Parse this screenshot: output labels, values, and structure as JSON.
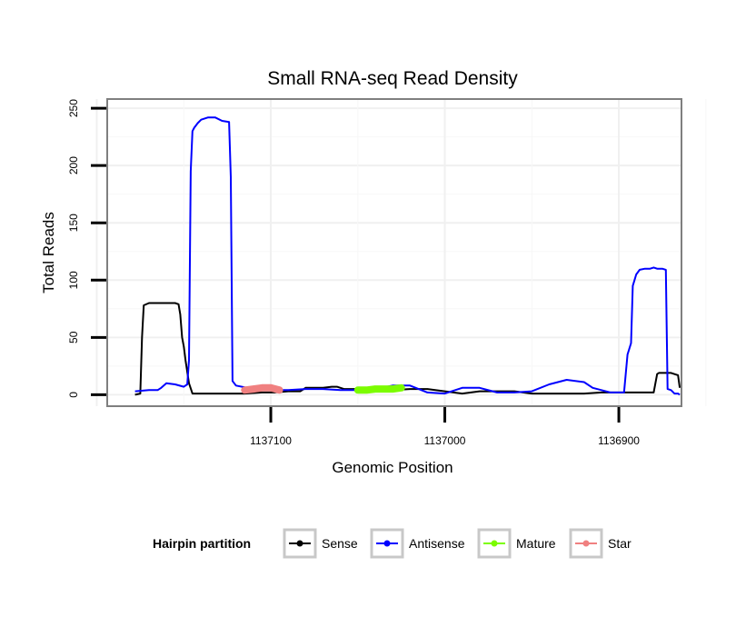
{
  "chart_data": {
    "type": "line",
    "title": "Small RNA-seq Read Density",
    "xlabel": "Genomic Position",
    "ylabel": "Total Reads",
    "x_reversed": true,
    "xlim": [
      1137194,
      1136864
    ],
    "ylim": [
      -10,
      258
    ],
    "x_ticks": [
      1137100,
      1137000,
      1136900
    ],
    "x_tick_labels": [
      "1137100",
      "1137000",
      "1136900"
    ],
    "y_ticks": [
      0,
      50,
      100,
      150,
      200,
      250
    ],
    "y_tick_labels": [
      "0",
      "50",
      "100",
      "150",
      "200",
      "250"
    ],
    "grid": true,
    "legend": {
      "title": "Hairpin partition",
      "position": "bottom",
      "entries": [
        {
          "label": "Sense",
          "color": "#000000"
        },
        {
          "label": "Antisense",
          "color": "#0000ff"
        },
        {
          "label": "Mature",
          "color": "#7cfc00"
        },
        {
          "label": "Star",
          "color": "#f08080"
        }
      ]
    },
    "series": [
      {
        "name": "Sense",
        "color": "#000000",
        "x": [
          1137178,
          1137175,
          1137174,
          1137173,
          1137170,
          1137168,
          1137165,
          1137160,
          1137155,
          1137153,
          1137152,
          1137151,
          1137150,
          1137149,
          1137147,
          1137145,
          1137135,
          1137125,
          1137115,
          1137105,
          1137098,
          1137090,
          1137083,
          1137080,
          1137070,
          1137065,
          1137062,
          1137058,
          1137050,
          1137040,
          1137030,
          1137020,
          1137010,
          1137000,
          1136990,
          1136980,
          1136970,
          1136960,
          1136950,
          1136940,
          1136930,
          1136920,
          1136910,
          1136900,
          1136890,
          1136885,
          1136880,
          1136878,
          1136877,
          1136870,
          1136866,
          1136865
        ],
        "values": [
          0,
          1,
          50,
          78,
          80,
          80,
          80,
          80,
          80,
          79,
          70,
          50,
          42,
          30,
          10,
          1,
          1,
          1,
          1,
          2,
          2,
          3,
          3,
          6,
          6,
          7,
          7,
          5,
          5,
          4,
          4,
          5,
          5,
          3,
          1,
          3,
          3,
          3,
          1,
          1,
          1,
          1,
          2,
          2,
          2,
          2,
          2,
          18,
          19,
          19,
          17,
          6
        ]
      },
      {
        "name": "Antisense",
        "color": "#0000ff",
        "x": [
          1137178,
          1137170,
          1137165,
          1137163,
          1137160,
          1137155,
          1137150,
          1137148,
          1137147,
          1137146,
          1137145,
          1137144,
          1137142,
          1137140,
          1137136,
          1137132,
          1137128,
          1137124,
          1137123,
          1137122,
          1137120,
          1137110,
          1137100,
          1137090,
          1137080,
          1137070,
          1137060,
          1137050,
          1137040,
          1137030,
          1137020,
          1137010,
          1137000,
          1136990,
          1136980,
          1136970,
          1136960,
          1136950,
          1136940,
          1136930,
          1136920,
          1136915,
          1136910,
          1136905,
          1136902,
          1136900,
          1136897,
          1136895,
          1136893,
          1136892,
          1136891,
          1136890,
          1136888,
          1136885,
          1136882,
          1136880,
          1136878,
          1136875,
          1136873,
          1136872,
          1136870,
          1136868,
          1136866,
          1136865
        ],
        "values": [
          3,
          4,
          4,
          6,
          10,
          9,
          7,
          9,
          30,
          195,
          230,
          233,
          237,
          240,
          242,
          242,
          239,
          238,
          190,
          12,
          8,
          5,
          4,
          4,
          5,
          5,
          4,
          4,
          5,
          8,
          8,
          2,
          1,
          6,
          6,
          2,
          2,
          3,
          9,
          13,
          11,
          6,
          4,
          2,
          2,
          2,
          2,
          35,
          45,
          95,
          100,
          105,
          109,
          110,
          110,
          111,
          110,
          110,
          109,
          5,
          4,
          1,
          1,
          0
        ]
      },
      {
        "name": "Mature",
        "color": "#7cfc00",
        "x": [
          1137050,
          1137045,
          1137040,
          1137035,
          1137030,
          1137025
        ],
        "values": [
          4,
          4,
          5,
          5,
          5,
          6
        ]
      },
      {
        "name": "Star",
        "color": "#f08080",
        "x": [
          1137115,
          1137110,
          1137105,
          1137100,
          1137095
        ],
        "values": [
          4,
          5,
          6,
          6,
          4
        ]
      }
    ]
  }
}
